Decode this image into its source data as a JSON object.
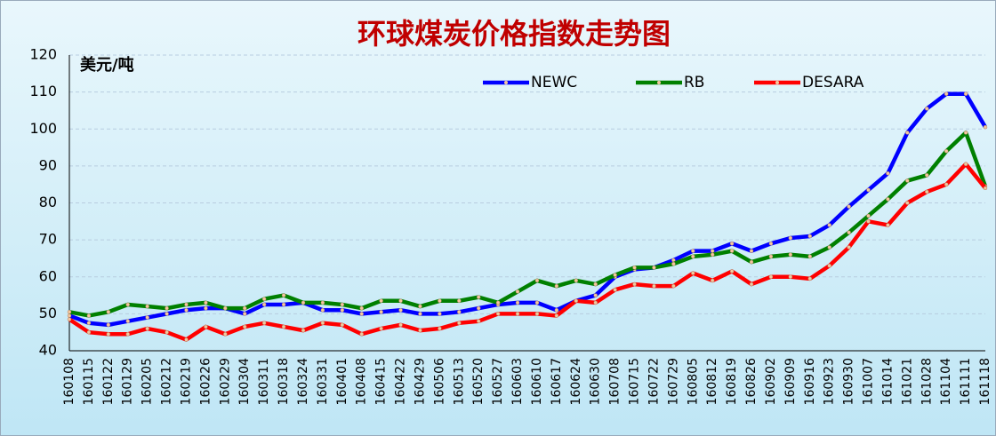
{
  "chart_data": {
    "type": "line",
    "title": "环球煤炭价格指数走势图",
    "y_label": "美元/吨",
    "categories": [
      "160108",
      "160115",
      "160122",
      "160129",
      "160205",
      "160212",
      "160219",
      "160226",
      "160229",
      "160304",
      "160311",
      "160318",
      "160324",
      "160331",
      "160401",
      "160408",
      "160415",
      "160422",
      "160429",
      "160506",
      "160513",
      "160520",
      "160527",
      "160603",
      "160610",
      "160617",
      "160624",
      "160630",
      "160708",
      "160715",
      "160722",
      "160729",
      "160805",
      "160812",
      "160819",
      "160826",
      "160902",
      "160909",
      "160916",
      "160923",
      "160930",
      "161007",
      "161014",
      "161021",
      "161028",
      "161104",
      "161111",
      "161118"
    ],
    "series": [
      {
        "name": "NEWC",
        "color": "#0000ff",
        "values": [
          49.5,
          47.5,
          47,
          48,
          49,
          50,
          51,
          51.5,
          51.5,
          50,
          52.5,
          52.5,
          53,
          51,
          51,
          50,
          50.5,
          51,
          50,
          50,
          50.5,
          51.5,
          52.5,
          53,
          53,
          51,
          53.5,
          55,
          60,
          62,
          62.5,
          64.5,
          67,
          67,
          69,
          67,
          69,
          70.5,
          71,
          74,
          79,
          83.5,
          88,
          99,
          105.5,
          109.5,
          109.5,
          100.5
        ]
      },
      {
        "name": "RB",
        "color": "#008000",
        "values": [
          50.5,
          49.5,
          50.5,
          52.5,
          52,
          51.5,
          52.5,
          53,
          51.5,
          51.5,
          54,
          55,
          53,
          53,
          52.5,
          51.5,
          53.5,
          53.5,
          52,
          53.5,
          53.5,
          54.5,
          53,
          56,
          59,
          57.5,
          59,
          58,
          60.5,
          62.5,
          62.5,
          63.5,
          65.5,
          66,
          67,
          64,
          65.5,
          66,
          65.5,
          68,
          72,
          76.5,
          81,
          86,
          87.5,
          94,
          99,
          84.5
        ]
      },
      {
        "name": "DESARA",
        "color": "#ff0000",
        "values": [
          48.5,
          45,
          44.5,
          44.5,
          46,
          45,
          43,
          46.5,
          44.5,
          46.5,
          47.5,
          46.5,
          45.5,
          47.5,
          47,
          44.5,
          46,
          47,
          45.5,
          46,
          47.5,
          48,
          50,
          50,
          50,
          49.5,
          53.5,
          53,
          56.5,
          58,
          57.5,
          57.5,
          61,
          59,
          61.5,
          58,
          60,
          60,
          59.5,
          63,
          68,
          75,
          74,
          80,
          83,
          85,
          90.5,
          84
        ]
      }
    ],
    "ylim": [
      40,
      120
    ],
    "yticks": [
      40,
      50,
      60,
      70,
      80,
      90,
      100,
      110,
      120
    ],
    "grid": true
  }
}
